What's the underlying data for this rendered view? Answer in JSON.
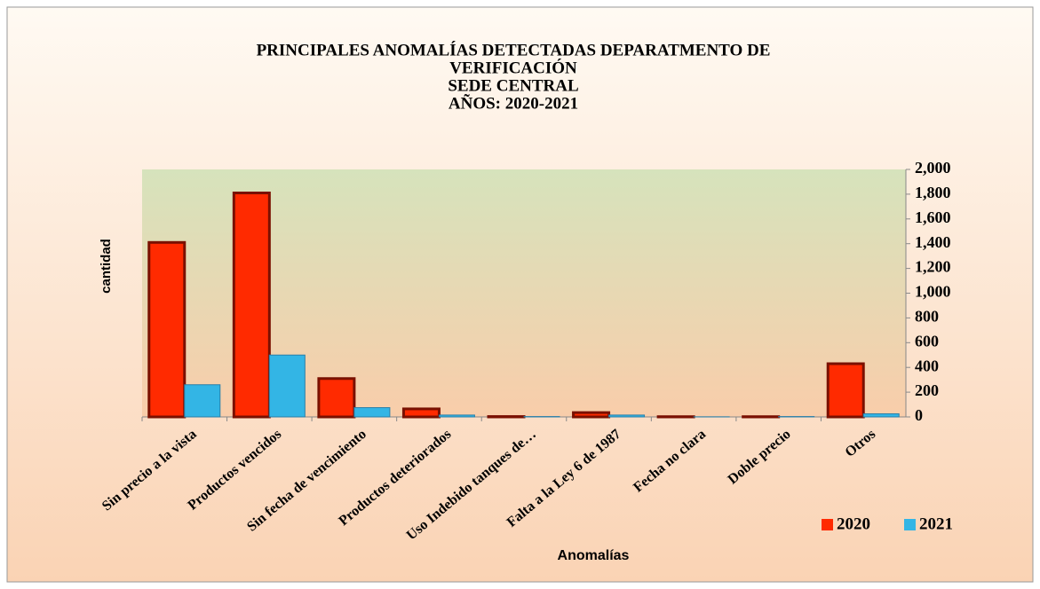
{
  "chart_data": {
    "type": "bar",
    "title": [
      "PRINCIPALES ANOMALÍAS DETECTADAS DEPARATMENTO DE",
      "VERIFICACIÓN",
      "SEDE CENTRAL",
      "AÑOS: 2020-2021"
    ],
    "x_label": "Anomalías",
    "y_label": "cantidad",
    "categories": [
      "Sin precio a la vista",
      "Productos vencidos",
      "Sin fecha de vencimiento",
      "Productos deteriorados",
      "Uso Indebido tanques de…",
      "Falta a la Ley 6 de 1987",
      "Fecha no clara",
      "Doble precio",
      "Otros"
    ],
    "series": [
      {
        "name": "2020",
        "color": "#ff2a00",
        "values": [
          1410,
          1810,
          310,
          65,
          3,
          35,
          2,
          2,
          430
        ]
      },
      {
        "name": "2021",
        "color": "#33b5e5",
        "values": [
          260,
          500,
          75,
          15,
          3,
          15,
          1,
          3,
          25
        ]
      }
    ],
    "ylim": [
      0,
      2000
    ],
    "yticks": [
      0,
      200,
      400,
      600,
      800,
      {
        "value": 1000,
        "label": "1,000"
      },
      {
        "value": 1200,
        "label": "1,200"
      },
      {
        "value": 1400,
        "label": "1,400"
      },
      {
        "value": 1600,
        "label": "1,600"
      },
      {
        "value": 1800,
        "label": "1,800"
      },
      {
        "value": 2000,
        "label": "2,000"
      }
    ],
    "y_axis_side": "right",
    "legend": "lower right"
  }
}
